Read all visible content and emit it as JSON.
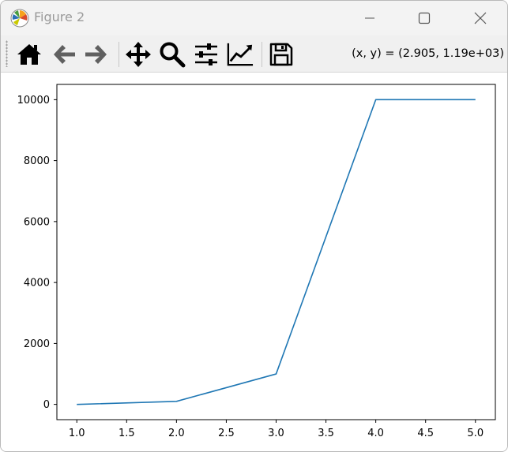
{
  "window": {
    "title": "Figure 2",
    "icons": {
      "app": "matplotlib-logo-icon",
      "minimize": "minimize-icon",
      "maximize": "maximize-icon",
      "close": "close-icon"
    }
  },
  "toolbar": {
    "buttons": [
      {
        "name": "home",
        "icon": "home-icon"
      },
      {
        "name": "back",
        "icon": "arrow-left-icon"
      },
      {
        "name": "forward",
        "icon": "arrow-right-icon"
      },
      {
        "name": "pan",
        "icon": "move-arrows-icon"
      },
      {
        "name": "zoom",
        "icon": "magnifier-icon"
      },
      {
        "name": "configure-subplots",
        "icon": "sliders-icon"
      },
      {
        "name": "edit-axis",
        "icon": "line-chart-icon"
      },
      {
        "name": "save",
        "icon": "floppy-disk-icon"
      }
    ],
    "coordinates": "(x, y) = (2.905, 1.19e+03)"
  },
  "colors": {
    "line": "#1f77b4",
    "title_text": "#9a9a9a",
    "toolbar_bg": "#f0f0f0",
    "titlebar_bg": "#f3f3f3"
  },
  "chart_data": {
    "type": "line",
    "x": [
      1.0,
      2.0,
      3.0,
      4.0,
      5.0
    ],
    "series": [
      {
        "values": [
          0,
          100,
          1000,
          10000,
          10000
        ]
      }
    ],
    "xticks": [
      1.0,
      1.5,
      2.0,
      2.5,
      3.0,
      3.5,
      4.0,
      4.5,
      5.0
    ],
    "xtick_labels": [
      "1.0",
      "1.5",
      "2.0",
      "2.5",
      "3.0",
      "3.5",
      "4.0",
      "4.5",
      "5.0"
    ],
    "yticks": [
      0,
      2000,
      4000,
      6000,
      8000,
      10000
    ],
    "ytick_labels": [
      "0",
      "2000",
      "4000",
      "6000",
      "8000",
      "10000"
    ],
    "xlim": [
      0.8,
      5.2
    ],
    "ylim": [
      -500,
      10500
    ],
    "grid": false,
    "title": "",
    "xlabel": "",
    "ylabel": ""
  }
}
